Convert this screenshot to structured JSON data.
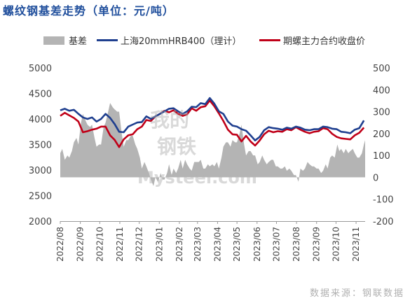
{
  "title": "螺纹钢基差走势（单位：元/吨）",
  "source": "数据来源：钢联数据",
  "watermark": {
    "cn_top": "我的",
    "cn_bottom": "钢铁",
    "en": "Mysteel.com"
  },
  "colors": {
    "basis": "#b4b4b4",
    "spot": "#1f3f8f",
    "futures": "#c00018",
    "title": "#1f4e9c"
  },
  "legend": [
    {
      "label": "基差"
    },
    {
      "label": "上海20mmHRB400（理计）"
    },
    {
      "label": "期螺主力合约收盘价"
    }
  ],
  "chart_data": {
    "type": "line",
    "title": "螺纹钢基差走势（单位：元/吨）",
    "xlabel": "",
    "ylabel": "",
    "y_left": {
      "min": 2000,
      "max": 5000,
      "ticks": [
        2000,
        2500,
        3000,
        3500,
        4000,
        4500,
        5000
      ]
    },
    "y_right": {
      "min": -200,
      "max": 500,
      "ticks": [
        -200,
        -100,
        0,
        100,
        200,
        300,
        400,
        500
      ]
    },
    "x_ticks": [
      "2022/08",
      "2022/09",
      "2022/10",
      "2022/11",
      "2022/12",
      "2023/01",
      "2023/02",
      "2023/03",
      "2023/04",
      "2023/05",
      "2023/06",
      "2023/07",
      "2023/08",
      "2023/09",
      "2023/10",
      "2023/11"
    ],
    "grid": false,
    "legend_position": "top",
    "series": [
      {
        "name": "上海20mmHRB400（理计）",
        "axis": "left",
        "kind": "line",
        "points": [
          [
            "2022/08/01",
            4170
          ],
          [
            "2022/08/08",
            4200
          ],
          [
            "2022/08/15",
            4160
          ],
          [
            "2022/08/22",
            4180
          ],
          [
            "2022/08/29",
            4100
          ],
          [
            "2022/09/05",
            4030
          ],
          [
            "2022/09/12",
            4000
          ],
          [
            "2022/09/19",
            4030
          ],
          [
            "2022/09/26",
            3950
          ],
          [
            "2022/10/03",
            4000
          ],
          [
            "2022/10/10",
            4100
          ],
          [
            "2022/10/17",
            4020
          ],
          [
            "2022/10/24",
            3900
          ],
          [
            "2022/10/31",
            3750
          ],
          [
            "2022/11/07",
            3740
          ],
          [
            "2022/11/14",
            3850
          ],
          [
            "2022/11/21",
            3890
          ],
          [
            "2022/11/28",
            3930
          ],
          [
            "2022/12/05",
            3940
          ],
          [
            "2022/12/12",
            4050
          ],
          [
            "2022/12/19",
            4000
          ],
          [
            "2022/12/26",
            4050
          ],
          [
            "2023/01/02",
            4100
          ],
          [
            "2023/01/09",
            4150
          ],
          [
            "2023/01/16",
            4200
          ],
          [
            "2023/01/23",
            4210
          ],
          [
            "2023/01/30",
            4150
          ],
          [
            "2023/02/06",
            4100
          ],
          [
            "2023/02/13",
            4150
          ],
          [
            "2023/02/20",
            4240
          ],
          [
            "2023/02/27",
            4230
          ],
          [
            "2023/03/06",
            4310
          ],
          [
            "2023/03/13",
            4290
          ],
          [
            "2023/03/20",
            4410
          ],
          [
            "2023/03/27",
            4300
          ],
          [
            "2023/04/03",
            4150
          ],
          [
            "2023/04/10",
            4100
          ],
          [
            "2023/04/17",
            3950
          ],
          [
            "2023/04/24",
            3870
          ],
          [
            "2023/05/01",
            3850
          ],
          [
            "2023/05/08",
            3800
          ],
          [
            "2023/05/15",
            3770
          ],
          [
            "2023/05/22",
            3680
          ],
          [
            "2023/05/29",
            3580
          ],
          [
            "2023/06/05",
            3650
          ],
          [
            "2023/06/12",
            3780
          ],
          [
            "2023/06/19",
            3840
          ],
          [
            "2023/06/26",
            3820
          ],
          [
            "2023/07/03",
            3810
          ],
          [
            "2023/07/10",
            3790
          ],
          [
            "2023/07/17",
            3830
          ],
          [
            "2023/07/24",
            3810
          ],
          [
            "2023/07/31",
            3850
          ],
          [
            "2023/08/07",
            3830
          ],
          [
            "2023/08/14",
            3790
          ],
          [
            "2023/08/21",
            3780
          ],
          [
            "2023/08/28",
            3800
          ],
          [
            "2023/09/04",
            3800
          ],
          [
            "2023/09/11",
            3850
          ],
          [
            "2023/09/18",
            3840
          ],
          [
            "2023/09/25",
            3810
          ],
          [
            "2023/10/02",
            3800
          ],
          [
            "2023/10/09",
            3750
          ],
          [
            "2023/10/16",
            3740
          ],
          [
            "2023/10/23",
            3720
          ],
          [
            "2023/10/30",
            3790
          ],
          [
            "2023/11/06",
            3820
          ],
          [
            "2023/11/13",
            3970
          ]
        ]
      },
      {
        "name": "期螺主力合约收盘价",
        "axis": "left",
        "kind": "line",
        "points": [
          [
            "2022/08/01",
            4060
          ],
          [
            "2022/08/08",
            4120
          ],
          [
            "2022/08/15",
            4070
          ],
          [
            "2022/08/22",
            4020
          ],
          [
            "2022/08/29",
            3950
          ],
          [
            "2022/09/05",
            3740
          ],
          [
            "2022/09/12",
            3760
          ],
          [
            "2022/09/19",
            3790
          ],
          [
            "2022/09/26",
            3810
          ],
          [
            "2022/10/03",
            3850
          ],
          [
            "2022/10/10",
            3850
          ],
          [
            "2022/10/17",
            3680
          ],
          [
            "2022/10/24",
            3590
          ],
          [
            "2022/10/31",
            3450
          ],
          [
            "2022/11/07",
            3600
          ],
          [
            "2022/11/14",
            3680
          ],
          [
            "2022/11/21",
            3700
          ],
          [
            "2022/11/28",
            3800
          ],
          [
            "2022/12/05",
            3850
          ],
          [
            "2022/12/12",
            3980
          ],
          [
            "2022/12/19",
            3960
          ],
          [
            "2022/12/26",
            4050
          ],
          [
            "2023/01/02",
            4100
          ],
          [
            "2023/01/09",
            4160
          ],
          [
            "2023/01/16",
            4130
          ],
          [
            "2023/01/23",
            4170
          ],
          [
            "2023/01/30",
            4100
          ],
          [
            "2023/02/06",
            4060
          ],
          [
            "2023/02/13",
            4090
          ],
          [
            "2023/02/20",
            4210
          ],
          [
            "2023/02/27",
            4160
          ],
          [
            "2023/03/06",
            4230
          ],
          [
            "2023/03/13",
            4250
          ],
          [
            "2023/03/20",
            4360
          ],
          [
            "2023/03/27",
            4250
          ],
          [
            "2023/04/03",
            4110
          ],
          [
            "2023/04/10",
            3960
          ],
          [
            "2023/04/17",
            3790
          ],
          [
            "2023/04/24",
            3700
          ],
          [
            "2023/05/01",
            3690
          ],
          [
            "2023/05/08",
            3560
          ],
          [
            "2023/05/15",
            3670
          ],
          [
            "2023/05/22",
            3560
          ],
          [
            "2023/05/29",
            3480
          ],
          [
            "2023/06/05",
            3580
          ],
          [
            "2023/06/12",
            3700
          ],
          [
            "2023/06/19",
            3770
          ],
          [
            "2023/06/26",
            3740
          ],
          [
            "2023/07/03",
            3760
          ],
          [
            "2023/07/10",
            3750
          ],
          [
            "2023/07/17",
            3800
          ],
          [
            "2023/07/24",
            3780
          ],
          [
            "2023/07/31",
            3840
          ],
          [
            "2023/08/07",
            3790
          ],
          [
            "2023/08/14",
            3750
          ],
          [
            "2023/08/21",
            3720
          ],
          [
            "2023/08/28",
            3750
          ],
          [
            "2023/09/04",
            3760
          ],
          [
            "2023/09/11",
            3820
          ],
          [
            "2023/09/18",
            3800
          ],
          [
            "2023/09/25",
            3710
          ],
          [
            "2023/10/02",
            3650
          ],
          [
            "2023/10/09",
            3620
          ],
          [
            "2023/10/16",
            3610
          ],
          [
            "2023/10/23",
            3600
          ],
          [
            "2023/10/30",
            3680
          ],
          [
            "2023/11/06",
            3730
          ],
          [
            "2023/11/13",
            3830
          ]
        ]
      },
      {
        "name": "基差",
        "axis": "right",
        "kind": "area",
        "points": [
          [
            "2022/08/01",
            110
          ],
          [
            "2022/08/04",
            130
          ],
          [
            "2022/08/08",
            80
          ],
          [
            "2022/08/12",
            100
          ],
          [
            "2022/08/15",
            90
          ],
          [
            "2022/08/19",
            120
          ],
          [
            "2022/08/22",
            160
          ],
          [
            "2022/08/26",
            180
          ],
          [
            "2022/08/29",
            150
          ],
          [
            "2022/09/02",
            250
          ],
          [
            "2022/09/05",
            290
          ],
          [
            "2022/09/09",
            260
          ],
          [
            "2022/09/12",
            240
          ],
          [
            "2022/09/16",
            230
          ],
          [
            "2022/09/19",
            240
          ],
          [
            "2022/09/23",
            180
          ],
          [
            "2022/09/26",
            140
          ],
          [
            "2022/09/30",
            150
          ],
          [
            "2022/10/03",
            150
          ],
          [
            "2022/10/07",
            230
          ],
          [
            "2022/10/10",
            250
          ],
          [
            "2022/10/14",
            300
          ],
          [
            "2022/10/17",
            340
          ],
          [
            "2022/10/21",
            320
          ],
          [
            "2022/10/24",
            310
          ],
          [
            "2022/10/28",
            300
          ],
          [
            "2022/10/31",
            300
          ],
          [
            "2022/11/04",
            200
          ],
          [
            "2022/11/07",
            140
          ],
          [
            "2022/11/11",
            170
          ],
          [
            "2022/11/14",
            170
          ],
          [
            "2022/11/18",
            190
          ],
          [
            "2022/11/21",
            190
          ],
          [
            "2022/11/25",
            150
          ],
          [
            "2022/11/28",
            130
          ],
          [
            "2022/12/02",
            90
          ],
          [
            "2022/12/05",
            40
          ],
          [
            "2022/12/09",
            70
          ],
          [
            "2022/12/12",
            50
          ],
          [
            "2022/12/16",
            20
          ],
          [
            "2022/12/19",
            -10
          ],
          [
            "2022/12/23",
            -40
          ],
          [
            "2022/12/26",
            0
          ],
          [
            "2022/12/30",
            -20
          ],
          [
            "2023/01/03",
            20
          ],
          [
            "2023/01/06",
            -10
          ],
          [
            "2023/01/09",
            -10
          ],
          [
            "2023/01/13",
            20
          ],
          [
            "2023/01/16",
            60
          ],
          [
            "2023/01/20",
            10
          ],
          [
            "2023/01/23",
            40
          ],
          [
            "2023/01/27",
            20
          ],
          [
            "2023/01/30",
            40
          ],
          [
            "2023/02/03",
            80
          ],
          [
            "2023/02/06",
            40
          ],
          [
            "2023/02/10",
            80
          ],
          [
            "2023/02/13",
            60
          ],
          [
            "2023/02/17",
            40
          ],
          [
            "2023/02/20",
            30
          ],
          [
            "2023/02/24",
            70
          ],
          [
            "2023/02/27",
            70
          ],
          [
            "2023/03/03",
            70
          ],
          [
            "2023/03/06",
            80
          ],
          [
            "2023/03/10",
            40
          ],
          [
            "2023/03/13",
            40
          ],
          [
            "2023/03/17",
            60
          ],
          [
            "2023/03/20",
            50
          ],
          [
            "2023/03/24",
            60
          ],
          [
            "2023/03/27",
            50
          ],
          [
            "2023/03/31",
            70
          ],
          [
            "2023/04/03",
            40
          ],
          [
            "2023/04/07",
            90
          ],
          [
            "2023/04/10",
            140
          ],
          [
            "2023/04/14",
            160
          ],
          [
            "2023/04/17",
            160
          ],
          [
            "2023/04/21",
            140
          ],
          [
            "2023/04/24",
            170
          ],
          [
            "2023/04/28",
            160
          ],
          [
            "2023/05/01",
            160
          ],
          [
            "2023/05/05",
            200
          ],
          [
            "2023/05/08",
            240
          ],
          [
            "2023/05/12",
            150
          ],
          [
            "2023/05/15",
            100
          ],
          [
            "2023/05/19",
            120
          ],
          [
            "2023/05/22",
            120
          ],
          [
            "2023/05/26",
            100
          ],
          [
            "2023/05/29",
            100
          ],
          [
            "2023/06/02",
            60
          ],
          [
            "2023/06/05",
            70
          ],
          [
            "2023/06/09",
            100
          ],
          [
            "2023/06/12",
            80
          ],
          [
            "2023/06/16",
            60
          ],
          [
            "2023/06/19",
            70
          ],
          [
            "2023/06/23",
            80
          ],
          [
            "2023/06/26",
            80
          ],
          [
            "2023/06/30",
            50
          ],
          [
            "2023/07/03",
            50
          ],
          [
            "2023/07/07",
            40
          ],
          [
            "2023/07/10",
            40
          ],
          [
            "2023/07/14",
            50
          ],
          [
            "2023/07/17",
            30
          ],
          [
            "2023/07/21",
            40
          ],
          [
            "2023/07/24",
            30
          ],
          [
            "2023/07/28",
            10
          ],
          [
            "2023/07/31",
            10
          ],
          [
            "2023/08/04",
            -20
          ],
          [
            "2023/08/07",
            40
          ],
          [
            "2023/08/11",
            30
          ],
          [
            "2023/08/14",
            40
          ],
          [
            "2023/08/18",
            70
          ],
          [
            "2023/08/21",
            60
          ],
          [
            "2023/08/25",
            50
          ],
          [
            "2023/08/28",
            50
          ],
          [
            "2023/09/01",
            40
          ],
          [
            "2023/09/04",
            40
          ],
          [
            "2023/09/08",
            20
          ],
          [
            "2023/09/11",
            30
          ],
          [
            "2023/09/15",
            60
          ],
          [
            "2023/09/18",
            40
          ],
          [
            "2023/09/22",
            90
          ],
          [
            "2023/09/25",
            100
          ],
          [
            "2023/09/29",
            90
          ],
          [
            "2023/10/03",
            150
          ],
          [
            "2023/10/06",
            120
          ],
          [
            "2023/10/09",
            130
          ],
          [
            "2023/10/13",
            110
          ],
          [
            "2023/10/16",
            130
          ],
          [
            "2023/10/20",
            110
          ],
          [
            "2023/10/23",
            120
          ],
          [
            "2023/10/27",
            130
          ],
          [
            "2023/10/30",
            110
          ],
          [
            "2023/11/03",
            90
          ],
          [
            "2023/11/06",
            90
          ],
          [
            "2023/11/10",
            110
          ],
          [
            "2023/11/13",
            150
          ],
          [
            "2023/11/15",
            170
          ]
        ]
      }
    ]
  }
}
